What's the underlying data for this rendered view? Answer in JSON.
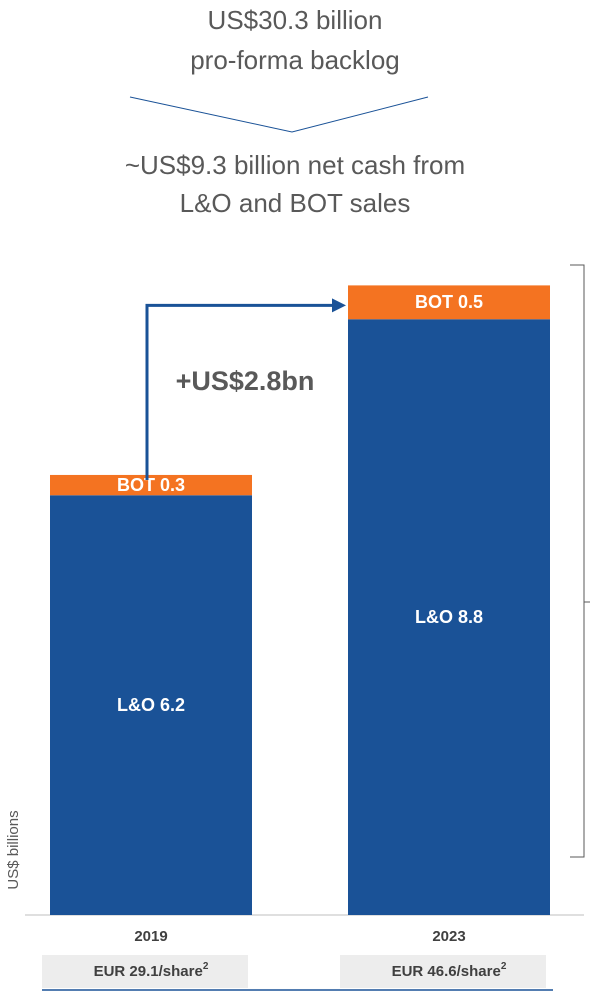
{
  "header": {
    "line1": "US$30.3 billion",
    "line2": "pro-forma backlog",
    "line3": "~US$9.3 billion net cash from",
    "line4": "L&O and BOT sales"
  },
  "chart_data": {
    "type": "bar",
    "stacked": true,
    "y_label": "US$ billions",
    "categories": [
      "2019",
      "2023"
    ],
    "series": [
      {
        "name": "L&O",
        "color": "#1a5297",
        "values": [
          6.2,
          8.8
        ],
        "value_labels": [
          "L&O 6.2",
          "L&O 8.8"
        ]
      },
      {
        "name": "BOT",
        "color": "#f47321",
        "values": [
          0.3,
          0.5
        ],
        "value_labels": [
          "BOT 0.3",
          "BOT 0.5"
        ]
      }
    ],
    "ylim": [
      0,
      10
    ],
    "annotation": "+US$2.8bn",
    "per_share": [
      {
        "text": "EUR 29.1/share",
        "sup": "2"
      },
      {
        "text": "EUR 46.6/share",
        "sup": "2"
      }
    ]
  }
}
